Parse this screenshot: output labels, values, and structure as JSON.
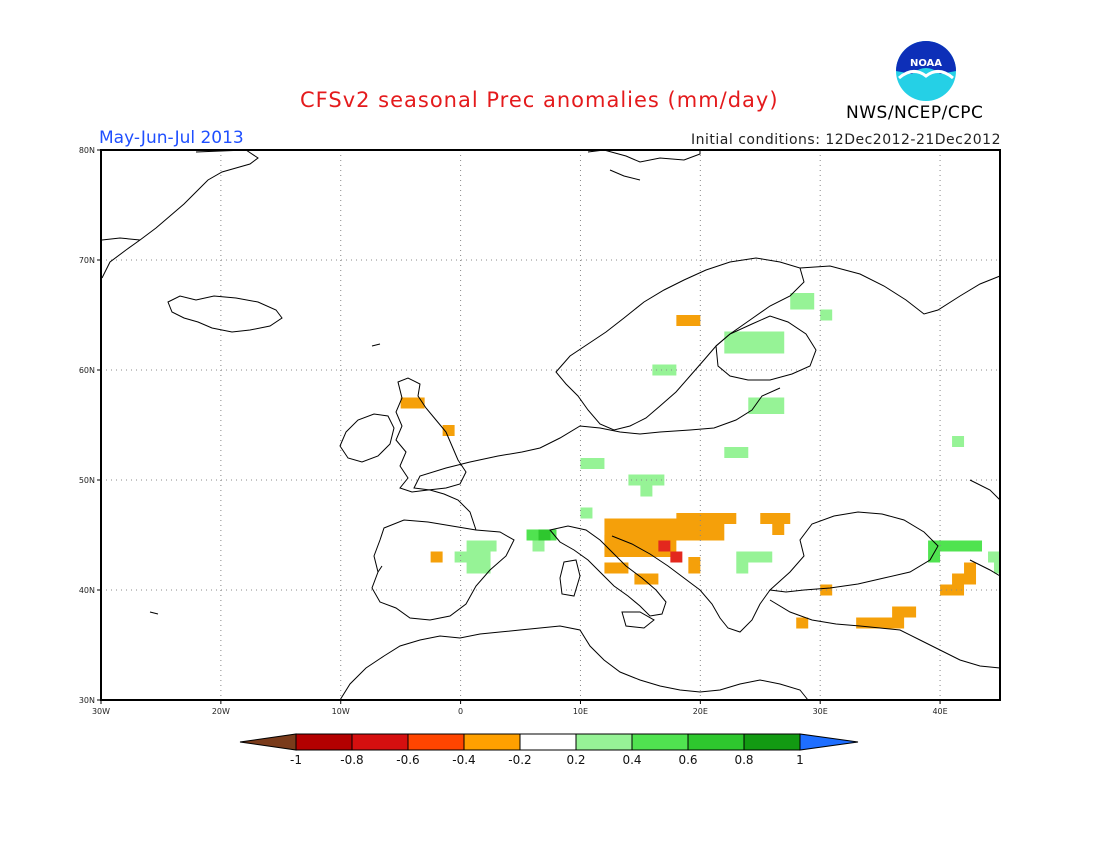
{
  "header": {
    "title": "CFSv2 seasonal Prec anomalies (mm/day)",
    "season": "May-Jun-Jul 2013",
    "initial_conditions": "Initial conditions: 12Dec2012-21Dec2012",
    "agency": "NWS/NCEP/CPC",
    "logo_text": "NOAA"
  },
  "map": {
    "lon_range": [
      -30,
      45
    ],
    "lat_range": [
      30,
      80
    ],
    "lon_ticks": [
      {
        "v": -30,
        "label": "30W"
      },
      {
        "v": -20,
        "label": "20W"
      },
      {
        "v": -10,
        "label": "10W"
      },
      {
        "v": 0,
        "label": "0"
      },
      {
        "v": 10,
        "label": "10E"
      },
      {
        "v": 20,
        "label": "20E"
      },
      {
        "v": 30,
        "label": "30E"
      },
      {
        "v": 40,
        "label": "40E"
      }
    ],
    "lat_ticks": [
      {
        "v": 30,
        "label": "30N"
      },
      {
        "v": 40,
        "label": "40N"
      },
      {
        "v": 50,
        "label": "50N"
      },
      {
        "v": 60,
        "label": "60N"
      },
      {
        "v": 70,
        "label": "70N"
      },
      {
        "v": 80,
        "label": "80N"
      }
    ],
    "grid": "dotted",
    "anomaly_cells": [
      {
        "lon0": -5,
        "lon1": -3,
        "lat0": 56.5,
        "lat1": 57.5,
        "class": "-0.4"
      },
      {
        "lon0": -1.5,
        "lon1": -0.5,
        "lat0": 54,
        "lat1": 55,
        "class": "-0.4"
      },
      {
        "lon0": -2.5,
        "lon1": -1.5,
        "lat0": 42.5,
        "lat1": 43.5,
        "class": "-0.4"
      },
      {
        "lon0": 18,
        "lon1": 20,
        "lat0": 64,
        "lat1": 65,
        "class": "-0.4"
      },
      {
        "lon0": 12,
        "lon1": 22,
        "lat0": 44.5,
        "lat1": 46.5,
        "class": "-0.4"
      },
      {
        "lon0": 18,
        "lon1": 23,
        "lat0": 46,
        "lat1": 47,
        "class": "-0.4"
      },
      {
        "lon0": 12,
        "lon1": 18,
        "lat0": 43,
        "lat1": 45,
        "class": "-0.4"
      },
      {
        "lon0": 12,
        "lon1": 14,
        "lat0": 41.5,
        "lat1": 42.5,
        "class": "-0.4"
      },
      {
        "lon0": 14.5,
        "lon1": 16.5,
        "lat0": 40.5,
        "lat1": 41.5,
        "class": "-0.4"
      },
      {
        "lon0": 19,
        "lon1": 20,
        "lat0": 41.5,
        "lat1": 43,
        "class": "-0.4"
      },
      {
        "lon0": 25,
        "lon1": 27.5,
        "lat0": 46,
        "lat1": 47,
        "class": "-0.4"
      },
      {
        "lon0": 26,
        "lon1": 27,
        "lat0": 45,
        "lat1": 46,
        "class": "-0.4"
      },
      {
        "lon0": 30,
        "lon1": 31,
        "lat0": 39.5,
        "lat1": 40.5,
        "class": "-0.4"
      },
      {
        "lon0": 28,
        "lon1": 29,
        "lat0": 36.5,
        "lat1": 37.5,
        "class": "-0.4"
      },
      {
        "lon0": 33,
        "lon1": 37,
        "lat0": 36.5,
        "lat1": 37.5,
        "class": "-0.4"
      },
      {
        "lon0": 36,
        "lon1": 38,
        "lat0": 37.5,
        "lat1": 38.5,
        "class": "-0.4"
      },
      {
        "lon0": 40,
        "lon1": 42,
        "lat0": 39.5,
        "lat1": 40.5,
        "class": "-0.4"
      },
      {
        "lon0": 41,
        "lon1": 43,
        "lat0": 40.5,
        "lat1": 41.5,
        "class": "-0.4"
      },
      {
        "lon0": 42,
        "lon1": 43,
        "lat0": 41.5,
        "lat1": 42.5,
        "class": "-0.4"
      },
      {
        "lon0": 16.5,
        "lon1": 17.5,
        "lat0": 43.5,
        "lat1": 44.5,
        "class": "-0.6"
      },
      {
        "lon0": 17.5,
        "lon1": 18.5,
        "lat0": 42.5,
        "lat1": 43.5,
        "class": "-0.6"
      },
      {
        "lon0": 27.5,
        "lon1": 29.5,
        "lat0": 65.5,
        "lat1": 67,
        "class": "0.2"
      },
      {
        "lon0": 30,
        "lon1": 31,
        "lat0": 64.5,
        "lat1": 65.5,
        "class": "0.2"
      },
      {
        "lon0": 22,
        "lon1": 27,
        "lat0": 61.5,
        "lat1": 63.5,
        "class": "0.2"
      },
      {
        "lon0": 16,
        "lon1": 18,
        "lat0": 59.5,
        "lat1": 60.5,
        "class": "0.2"
      },
      {
        "lon0": 24,
        "lon1": 27,
        "lat0": 56,
        "lat1": 57.5,
        "class": "0.2"
      },
      {
        "lon0": 22,
        "lon1": 24,
        "lat0": 52,
        "lat1": 53,
        "class": "0.2"
      },
      {
        "lon0": 10,
        "lon1": 12,
        "lat0": 51,
        "lat1": 52,
        "class": "0.2"
      },
      {
        "lon0": 14,
        "lon1": 17,
        "lat0": 49.5,
        "lat1": 50.5,
        "class": "0.2"
      },
      {
        "lon0": 15,
        "lon1": 16,
        "lat0": 48.5,
        "lat1": 49.5,
        "class": "0.2"
      },
      {
        "lon0": 10,
        "lon1": 11,
        "lat0": 46.5,
        "lat1": 47.5,
        "class": "0.2"
      },
      {
        "lon0": 0.5,
        "lon1": 3,
        "lat0": 43.5,
        "lat1": 44.5,
        "class": "0.2"
      },
      {
        "lon0": -0.5,
        "lon1": 2.5,
        "lat0": 42.5,
        "lat1": 43.5,
        "class": "0.2"
      },
      {
        "lon0": 0.5,
        "lon1": 2.5,
        "lat0": 41.5,
        "lat1": 42.5,
        "class": "0.2"
      },
      {
        "lon0": 6,
        "lon1": 7,
        "lat0": 43.5,
        "lat1": 44.5,
        "class": "0.2"
      },
      {
        "lon0": 23,
        "lon1": 26,
        "lat0": 42.5,
        "lat1": 43.5,
        "class": "0.2"
      },
      {
        "lon0": 23,
        "lon1": 24,
        "lat0": 41.5,
        "lat1": 42.5,
        "class": "0.2"
      },
      {
        "lon0": 41,
        "lon1": 42,
        "lat0": 53,
        "lat1": 54,
        "class": "0.2"
      },
      {
        "lon0": 44,
        "lon1": 45,
        "lat0": 42.5,
        "lat1": 43.5,
        "class": "0.2"
      },
      {
        "lon0": 44.5,
        "lon1": 45,
        "lat0": 41.5,
        "lat1": 42.5,
        "class": "0.2"
      },
      {
        "lon0": 5.5,
        "lon1": 8,
        "lat0": 44.5,
        "lat1": 45.5,
        "class": "0.4"
      },
      {
        "lon0": 39,
        "lon1": 43.5,
        "lat0": 43.5,
        "lat1": 44.5,
        "class": "0.4"
      },
      {
        "lon0": 39,
        "lon1": 40,
        "lat0": 42.5,
        "lat1": 43.5,
        "class": "0.4"
      },
      {
        "lon0": 6.5,
        "lon1": 7.5,
        "lat0": 44.5,
        "lat1": 45.5,
        "class": "0.6"
      }
    ]
  },
  "colorbar": {
    "labels": [
      "-1",
      "-0.8",
      "-0.6",
      "-0.4",
      "-0.2",
      "0.2",
      "0.4",
      "0.6",
      "0.8",
      "1"
    ],
    "colors": [
      "#7a3b1b",
      "#b30000",
      "#d50f0f",
      "#ff4500",
      "#ffa000",
      "#ffffff",
      "#96f396",
      "#50e350",
      "#2ec72e",
      "#129a12",
      "#1e6eff"
    ],
    "anomaly_colors": {
      "-0.6": "#e3281e",
      "-0.4": "#f5a00a",
      "0.2": "#96f396",
      "0.4": "#50e350",
      "0.6": "#2ec72e"
    }
  }
}
